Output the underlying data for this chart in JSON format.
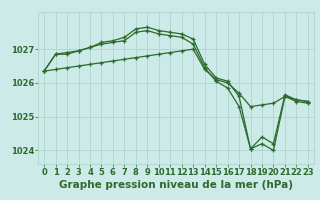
{
  "background_color": "#cceae7",
  "grid_color": "#b0d4cc",
  "line_color": "#2d6a2d",
  "xlabel": "Graphe pression niveau de la mer (hPa)",
  "xlabel_fontsize": 7.5,
  "tick_fontsize": 6.0,
  "yticks": [
    1024,
    1025,
    1026,
    1027
  ],
  "ylim": [
    1023.6,
    1028.1
  ],
  "xlim": [
    -0.5,
    23.5
  ],
  "xticks": [
    0,
    1,
    2,
    3,
    4,
    5,
    6,
    7,
    8,
    9,
    10,
    11,
    12,
    13,
    14,
    15,
    16,
    17,
    18,
    19,
    20,
    21,
    22,
    23
  ],
  "series": [
    [
      1026.35,
      1026.85,
      1026.9,
      1026.95,
      1027.05,
      1027.2,
      1027.25,
      1027.35,
      1027.6,
      1027.65,
      1027.55,
      1027.5,
      1027.45,
      1027.3,
      1026.55,
      1026.15,
      1026.05,
      1025.6,
      1024.05,
      1024.4,
      1024.2,
      1025.65,
      1025.5,
      1025.45
    ],
    [
      1026.35,
      1026.85,
      1026.85,
      1026.95,
      1027.05,
      1027.15,
      1027.2,
      1027.25,
      1027.5,
      1027.55,
      1027.45,
      1027.4,
      1027.35,
      1027.15,
      1026.45,
      1026.05,
      1025.85,
      1025.3,
      1024.05,
      1024.2,
      1024.0,
      1025.6,
      1025.45,
      1025.4
    ],
    [
      1026.35,
      1026.4,
      1026.45,
      1026.5,
      1026.55,
      1026.6,
      1026.65,
      1026.7,
      1026.75,
      1026.8,
      1026.85,
      1026.9,
      1026.95,
      1027.0,
      1026.4,
      1026.1,
      1026.0,
      1025.7,
      1025.3,
      1025.35,
      1025.4,
      1025.6,
      1025.5,
      1025.45
    ]
  ]
}
